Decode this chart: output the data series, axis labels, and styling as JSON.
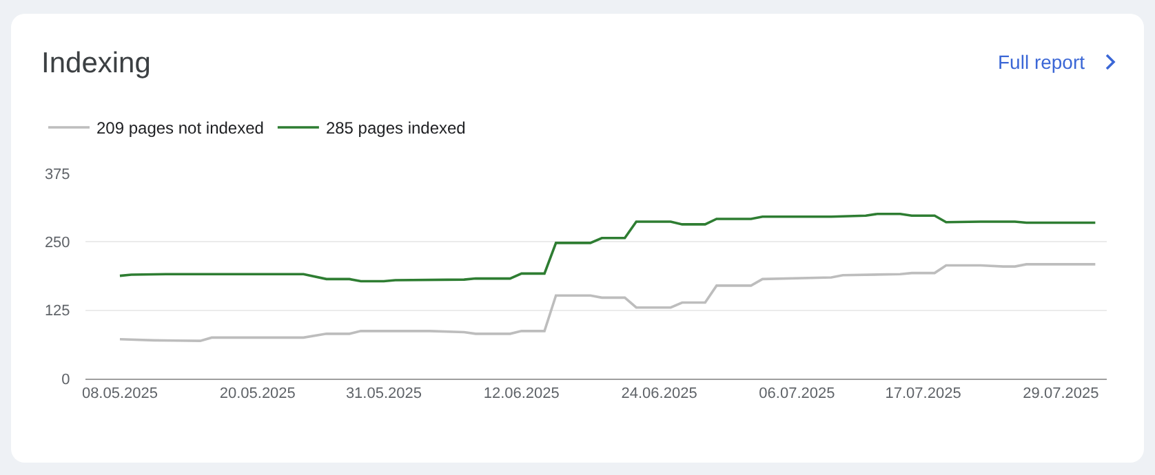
{
  "chart_data": {
    "type": "line",
    "title": "Indexing",
    "annotations": [
      "Full report"
    ],
    "legend": "top left",
    "grid": "y",
    "xlim": [
      "2025-05-05",
      "2025-08-02"
    ],
    "xticks": [
      {
        "value": "2025-05-08",
        "label": "08.05.2025"
      },
      {
        "value": "2025-05-20",
        "label": "20.05.2025"
      },
      {
        "value": "2025-05-31",
        "label": "31.05.2025"
      },
      {
        "value": "2025-06-12",
        "label": "12.06.2025"
      },
      {
        "value": "2025-06-24",
        "label": "24.06.2025"
      },
      {
        "value": "2025-07-06",
        "label": "06.07.2025"
      },
      {
        "value": "2025-07-17",
        "label": "17.07.2025"
      },
      {
        "value": "2025-07-29",
        "label": "29.07.2025"
      }
    ],
    "ylim": [
      0,
      375
    ],
    "yticks": [
      0,
      125,
      250,
      375
    ],
    "series": [
      {
        "name": "209 pages not indexed",
        "color": "#bdbdbd",
        "x": [
          "2025-05-08",
          "2025-05-11",
          "2025-05-15",
          "2025-05-16",
          "2025-05-24",
          "2025-05-26",
          "2025-05-28",
          "2025-05-29",
          "2025-06-04",
          "2025-06-07",
          "2025-06-08",
          "2025-06-11",
          "2025-06-12",
          "2025-06-14",
          "2025-06-15",
          "2025-06-18",
          "2025-06-19",
          "2025-06-21",
          "2025-06-22",
          "2025-06-25",
          "2025-06-26",
          "2025-06-28",
          "2025-06-29",
          "2025-07-02",
          "2025-07-03",
          "2025-07-09",
          "2025-07-10",
          "2025-07-15",
          "2025-07-16",
          "2025-07-18",
          "2025-07-19",
          "2025-07-22",
          "2025-07-24",
          "2025-07-25",
          "2025-07-26",
          "2025-08-01"
        ],
        "values": [
          72,
          70,
          69,
          75,
          75,
          82,
          82,
          87,
          87,
          85,
          82,
          82,
          87,
          87,
          152,
          152,
          148,
          148,
          130,
          130,
          139,
          139,
          170,
          170,
          182,
          185,
          189,
          191,
          193,
          193,
          207,
          207,
          205,
          205,
          209,
          209
        ]
      },
      {
        "name": "285 pages indexed",
        "color": "#2e7d32",
        "x": [
          "2025-05-08",
          "2025-05-09",
          "2025-05-12",
          "2025-05-24",
          "2025-05-26",
          "2025-05-28",
          "2025-05-29",
          "2025-05-31",
          "2025-06-01",
          "2025-06-07",
          "2025-06-08",
          "2025-06-11",
          "2025-06-12",
          "2025-06-14",
          "2025-06-15",
          "2025-06-18",
          "2025-06-19",
          "2025-06-21",
          "2025-06-22",
          "2025-06-25",
          "2025-06-26",
          "2025-06-28",
          "2025-06-29",
          "2025-07-02",
          "2025-07-03",
          "2025-07-09",
          "2025-07-12",
          "2025-07-13",
          "2025-07-15",
          "2025-07-16",
          "2025-07-18",
          "2025-07-19",
          "2025-07-22",
          "2025-07-25",
          "2025-07-26",
          "2025-08-01"
        ],
        "values": [
          188,
          190,
          191,
          191,
          182,
          182,
          178,
          178,
          180,
          181,
          183,
          183,
          192,
          192,
          248,
          248,
          257,
          257,
          287,
          287,
          282,
          282,
          292,
          292,
          296,
          296,
          298,
          301,
          301,
          298,
          298,
          286,
          287,
          287,
          285,
          285
        ]
      }
    ]
  }
}
